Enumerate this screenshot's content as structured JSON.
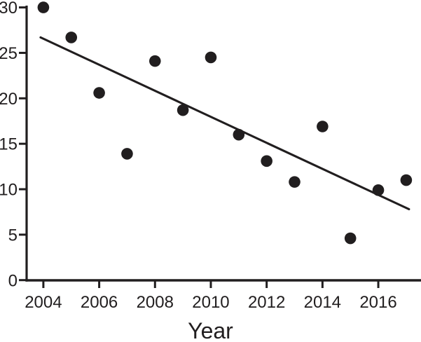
{
  "figure": {
    "background": "#ffffff",
    "ink_color": "#211e1f"
  },
  "chart_data": {
    "type": "scatter",
    "title": "",
    "xlabel": "Year",
    "ylabel": "",
    "x": [
      2004,
      2005,
      2006,
      2007,
      2008,
      2009,
      2010,
      2011,
      2012,
      2013,
      2014,
      2015,
      2016,
      2017
    ],
    "values": [
      30.0,
      26.7,
      20.6,
      13.9,
      24.1,
      18.7,
      24.5,
      16.0,
      13.1,
      10.8,
      16.9,
      4.6,
      9.9,
      11.0
    ],
    "trendline": {
      "x1": 2003.9,
      "v1": 26.7,
      "x2": 2017.1,
      "v2": 7.8
    },
    "x_ticks": [
      2004,
      2006,
      2008,
      2010,
      2012,
      2014,
      2016
    ],
    "x_tick_labels": [
      "2004",
      "2006",
      "2008",
      "2010",
      "2012",
      "2014",
      "2016"
    ],
    "y_ticks": [
      0,
      5,
      10,
      15,
      20,
      25,
      30
    ],
    "y_tick_labels": [
      "0",
      "5",
      "10",
      "15",
      "20",
      "25",
      "30"
    ],
    "xlim": [
      2003.4,
      2017.53
    ],
    "ylim": [
      0,
      30.2
    ],
    "grid": false,
    "legend": false,
    "marker": "filled-circle",
    "marker_color": "#211e1f",
    "line_color": "#211e1f"
  }
}
